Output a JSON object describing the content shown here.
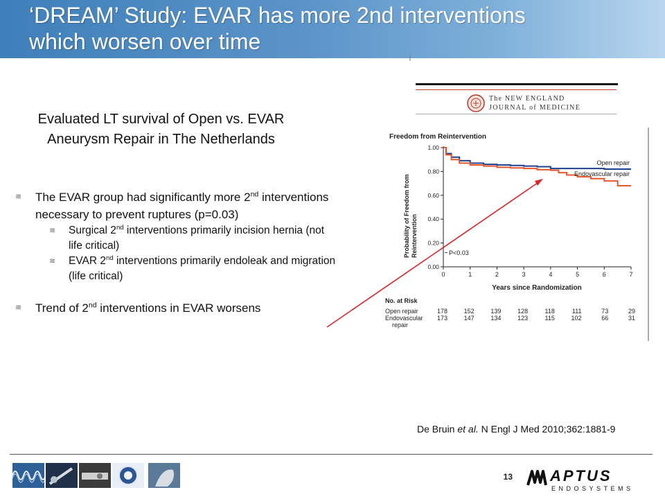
{
  "title": {
    "line1": "‘DREAM’ Study: EVAR has more 2nd interventions",
    "line2": "which worsen over time"
  },
  "subtitle": {
    "line1": "Evaluated LT survival of Open vs. EVAR",
    "line2": "Aneurysm Repair in The Netherlands"
  },
  "bullets": {
    "marker": "≋",
    "b1": {
      "pre": "The EVAR group had significantly more 2",
      "sup": "nd",
      "post": " interventions necessary to prevent ruptures (p=0.03)"
    },
    "b1_sub1": {
      "pre": "Surgical 2",
      "sup": "nd",
      "post": " interventions primarily incision hernia (not life critical)"
    },
    "b1_sub2": {
      "pre": "EVAR 2",
      "sup": "nd",
      "post": " interventions primarily endoleak and migration (life critical)"
    },
    "b2": {
      "pre": "Trend of 2",
      "sup": "nd",
      "post": " interventions in EVAR worsens"
    }
  },
  "journal": {
    "line1": "The NEW ENGLAND",
    "line2": "JOURNAL of MEDICINE"
  },
  "chart_data": {
    "type": "line",
    "title": "Freedom from Reintervention",
    "xlabel": "Years since Randomization",
    "ylabel": "Probability of Freedom from Reintervention",
    "xlim": [
      0,
      7
    ],
    "ylim": [
      0,
      1
    ],
    "xticks": [
      "0",
      "1",
      "2",
      "3",
      "4",
      "5",
      "6",
      "7"
    ],
    "yticks": [
      "0.00",
      "0.20",
      "0.40",
      "0.60",
      "0.80",
      "1.00"
    ],
    "annotation": "P<0.03",
    "series": [
      {
        "name": "Open repair",
        "color": "#1f3f8f",
        "x": [
          0,
          0.1,
          0.3,
          0.6,
          1.0,
          1.5,
          2.0,
          2.5,
          3.0,
          3.5,
          4.0,
          5.0,
          6.0,
          7.0
        ],
        "values": [
          1.0,
          0.95,
          0.92,
          0.89,
          0.87,
          0.86,
          0.855,
          0.85,
          0.845,
          0.84,
          0.825,
          0.825,
          0.82,
          0.82
        ]
      },
      {
        "name": "Endovascular repair",
        "color": "#e8552a",
        "x": [
          0,
          0.1,
          0.3,
          0.6,
          1.0,
          1.5,
          2.0,
          2.5,
          3.0,
          3.5,
          4.0,
          4.3,
          4.6,
          5.0,
          5.5,
          6.0,
          6.5,
          7.0
        ],
        "values": [
          1.0,
          0.94,
          0.9,
          0.87,
          0.855,
          0.845,
          0.835,
          0.83,
          0.825,
          0.815,
          0.81,
          0.79,
          0.77,
          0.755,
          0.74,
          0.72,
          0.68,
          0.68
        ]
      }
    ],
    "risk_table": {
      "header": "No. at Risk",
      "rows": [
        {
          "label": "Open repair",
          "values": [
            "178",
            "152",
            "139",
            "128",
            "118",
            "111",
            "73",
            "29"
          ]
        },
        {
          "label": "Endovascular",
          "label2": "repair",
          "values": [
            "173",
            "147",
            "134",
            "123",
            "115",
            "102",
            "66",
            "31"
          ]
        }
      ]
    }
  },
  "citation": {
    "pre": "De Bruin ",
    "italic": "et al.",
    "post": " N Engl J Med 2010;362:1881-9"
  },
  "page_number": "13",
  "brand": {
    "name": "APTUS",
    "tagline": "ENDOSYSTEMS",
    "accent": "#3f7fba",
    "arrow_color": "#d8262a"
  }
}
